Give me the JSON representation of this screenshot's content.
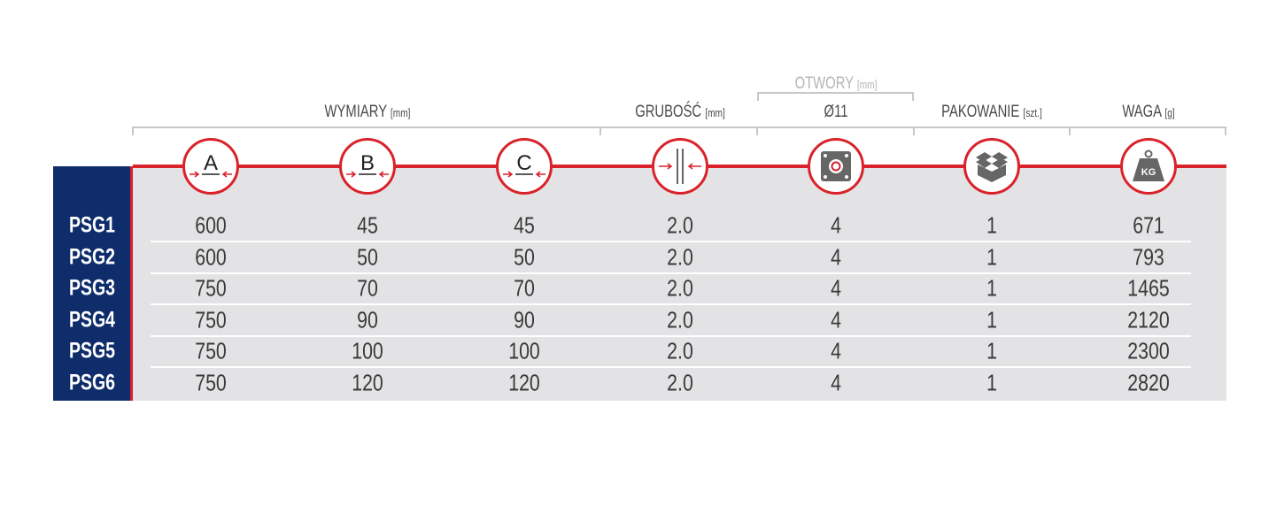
{
  "headers": {
    "dimensions": "WYMIARY",
    "dimensions_unit": "[mm]",
    "thickness": "GRUBOŚĆ",
    "thickness_unit": "[mm]",
    "holes": "OTWORY",
    "holes_unit": "[mm]",
    "holes_diameter": "Ø11",
    "packing": "PAKOWANIE",
    "packing_unit": "[szt.]",
    "weight": "WAGA",
    "weight_unit": "[g]"
  },
  "icons": {
    "a": "A",
    "b": "B",
    "c": "C",
    "weight": "KG"
  },
  "colors": {
    "navy": "#0f2d6b",
    "red": "#d9222a",
    "gray": "#e3e3e5"
  },
  "rows": [
    {
      "label": "PSG1",
      "values": [
        "600",
        "45",
        "45",
        "2.0",
        "4",
        "1",
        "671"
      ]
    },
    {
      "label": "PSG2",
      "values": [
        "600",
        "50",
        "50",
        "2.0",
        "4",
        "1",
        "793"
      ]
    },
    {
      "label": "PSG3",
      "values": [
        "750",
        "70",
        "70",
        "2.0",
        "4",
        "1",
        "1465"
      ]
    },
    {
      "label": "PSG4",
      "values": [
        "750",
        "90",
        "90",
        "2.0",
        "4",
        "1",
        "2120"
      ]
    },
    {
      "label": "PSG5",
      "values": [
        "750",
        "100",
        "100",
        "2.0",
        "4",
        "1",
        "2300"
      ]
    },
    {
      "label": "PSG6",
      "values": [
        "750",
        "120",
        "120",
        "2.0",
        "4",
        "1",
        "2820"
      ]
    }
  ]
}
